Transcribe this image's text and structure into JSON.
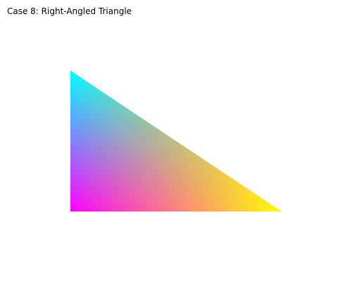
{
  "title": "Case 8: Right-Angled Triangle",
  "triangle": {
    "vertex_colors": {
      "top": "#00ffff",
      "bottom_left": "#ff00ff",
      "bottom_right": "#ffff00"
    },
    "fill": "vertex-color-gradient"
  },
  "background": "#ffffff"
}
